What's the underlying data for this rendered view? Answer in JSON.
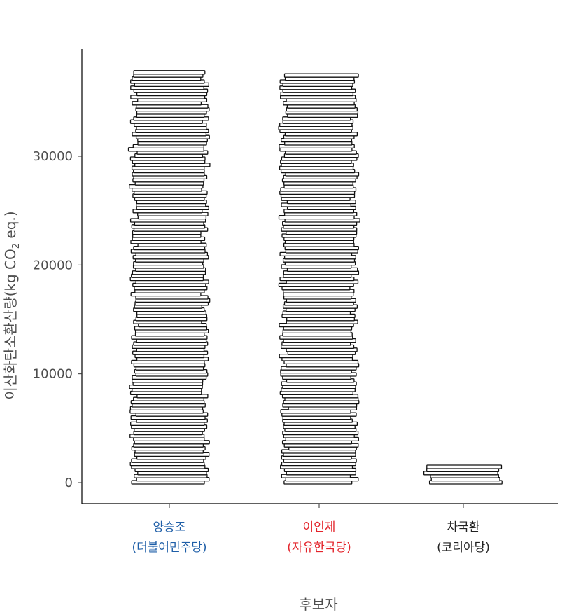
{
  "chart_data": {
    "type": "bar",
    "style": "stacked coin / hand-drawn pictogram bars",
    "xlabel": "후보자",
    "ylabel_text": "이산화탄소환산량(kg CO",
    "ylabel_sub": "2",
    "ylabel_end": " eq.)",
    "yticks": [
      0,
      10000,
      20000,
      30000
    ],
    "ylim": [
      0,
      38000
    ],
    "categories": [
      {
        "name": "양승조",
        "party": "(더불어민주당)",
        "color": "#1f5fa8",
        "value": 38000
      },
      {
        "name": "이인제",
        "party": "(자유한국당)",
        "color": "#e3242b",
        "value": 37800
      },
      {
        "name": "차국환",
        "party": "(코리아당)",
        "color": "#222222",
        "value": 1600
      }
    ]
  }
}
